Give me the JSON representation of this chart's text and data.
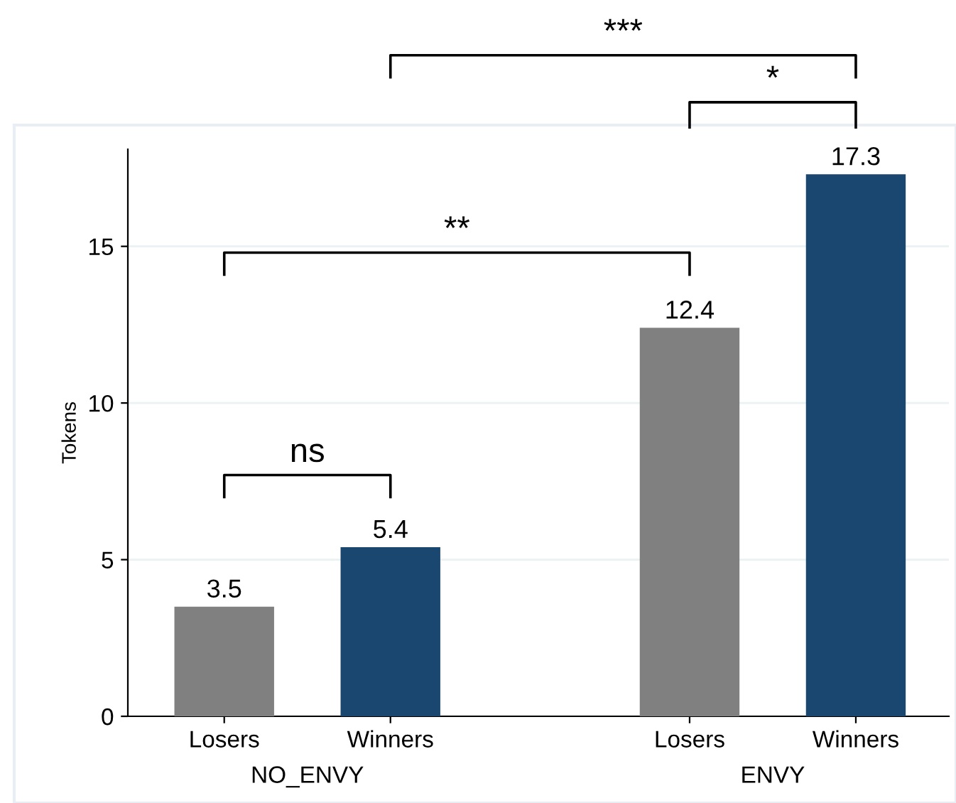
{
  "chart_data": {
    "type": "bar",
    "ylabel": "Tokens",
    "categories": [
      "Losers",
      "Winners",
      "Losers",
      "Winners"
    ],
    "values": [
      3.5,
      5.4,
      12.4,
      17.3
    ],
    "colors": [
      "#808080",
      "#1a476f",
      "#808080",
      "#1a476f"
    ],
    "ylim": [
      0,
      18.1
    ],
    "yticks": [
      0,
      5,
      10,
      15
    ],
    "grid": "y",
    "data_labels": true,
    "annotations": [
      "NO_ENVY",
      "ENVY",
      "ns",
      "**",
      "*",
      "***"
    ]
  }
}
